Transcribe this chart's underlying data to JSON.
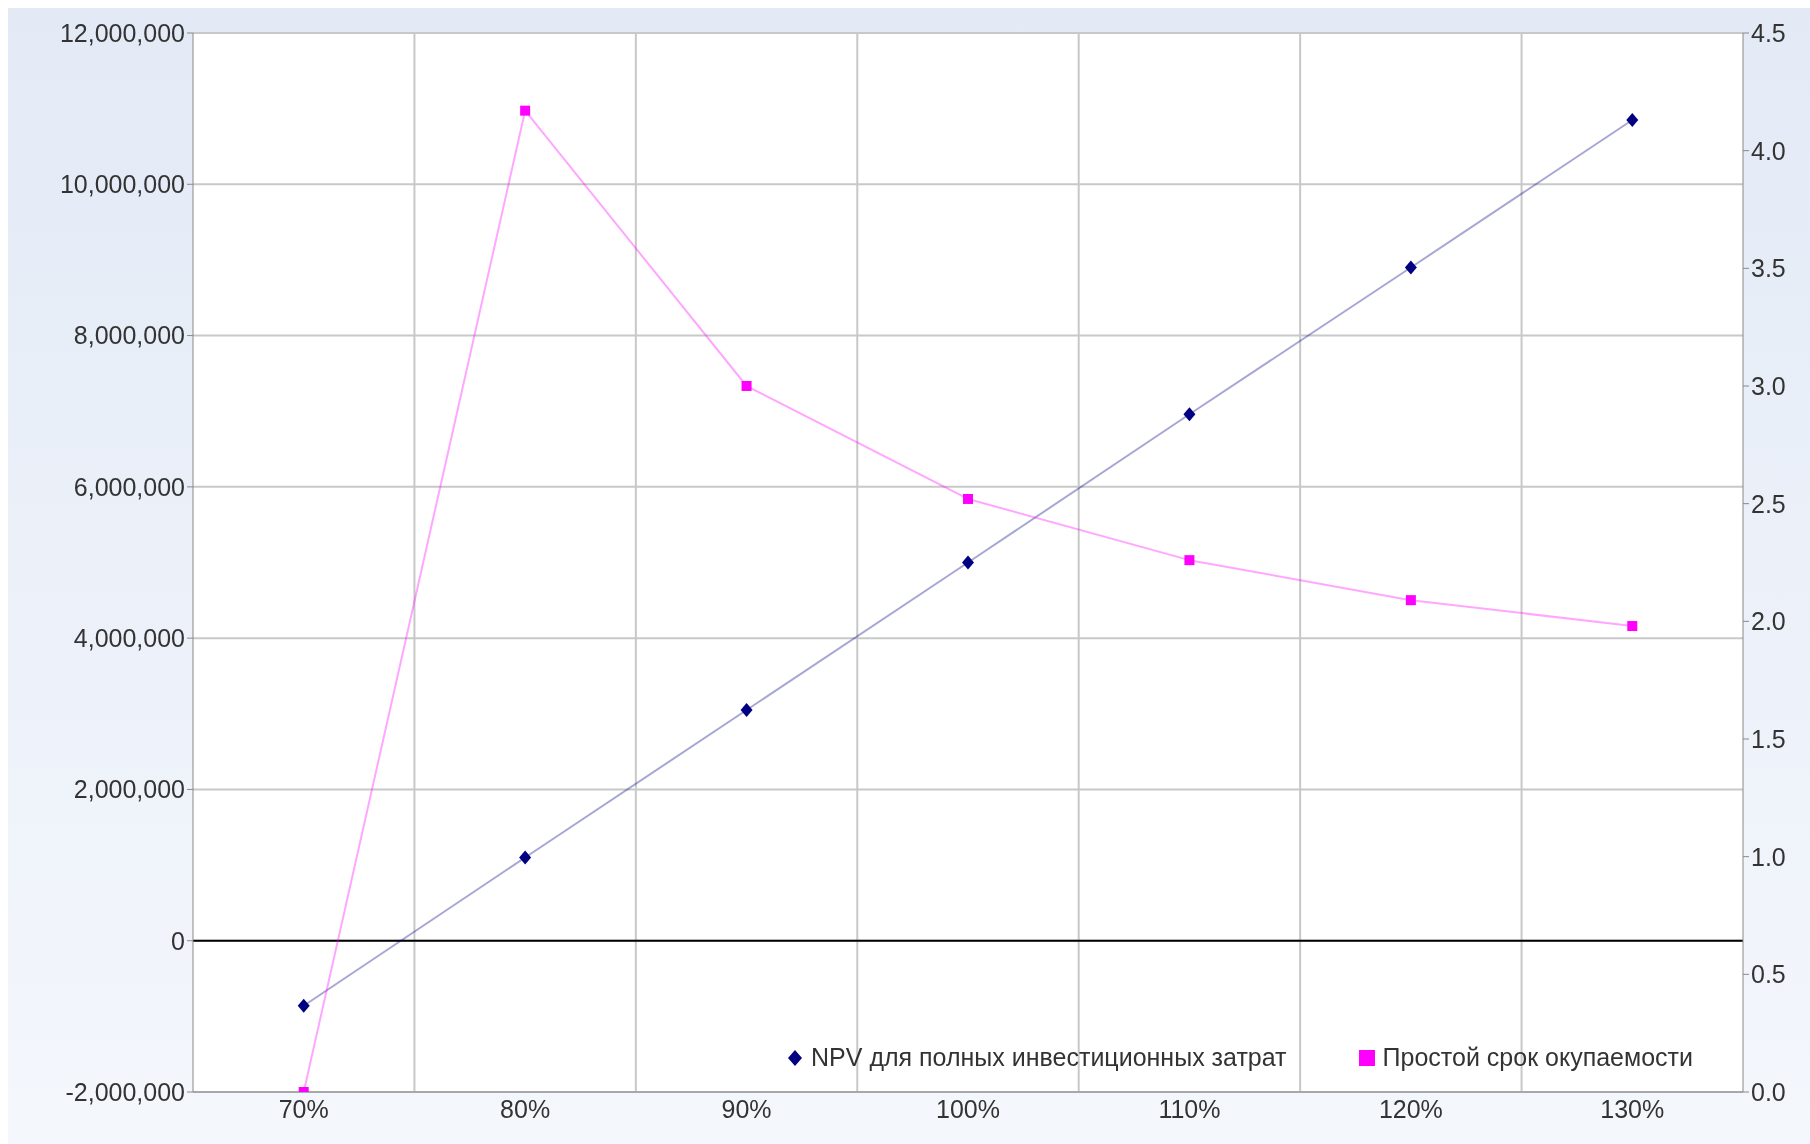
{
  "chart_data": {
    "type": "line",
    "categories": [
      "70%",
      "80%",
      "90%",
      "100%",
      "110%",
      "120%",
      "130%"
    ],
    "series": [
      {
        "name": "NPV для полных инвестиционных затрат",
        "color": "#000080",
        "marker": "diamond",
        "values": [
          -860000,
          1100000,
          3050000,
          5000000,
          6960000,
          8900000,
          10850000
        ]
      },
      {
        "name": "Простой срок окупаемости",
        "color": "#ff00ff",
        "marker": "square",
        "axis": "y2",
        "values": [
          0,
          4.17,
          3.0,
          2.52,
          2.26,
          2.09,
          1.98
        ]
      }
    ],
    "ylim": [
      -2000000,
      12000000
    ],
    "yticks": [
      {
        "value": -2000000,
        "label": "-2,000,000"
      },
      {
        "value": 0,
        "label": "0"
      },
      {
        "value": 2000000,
        "label": "2,000,000"
      },
      {
        "value": 4000000,
        "label": "4,000,000"
      },
      {
        "value": 6000000,
        "label": "6,000,000"
      },
      {
        "value": 8000000,
        "label": "8,000,000"
      },
      {
        "value": 10000000,
        "label": "10,000,000"
      },
      {
        "value": 12000000,
        "label": "12,000,000"
      }
    ],
    "y2lim": [
      0,
      4.5
    ],
    "y2ticks": [
      {
        "value": 0,
        "label": "0.0"
      },
      {
        "value": 0.5,
        "label": "0.5"
      },
      {
        "value": 1,
        "label": "1.0"
      },
      {
        "value": 1.5,
        "label": "1.5"
      },
      {
        "value": 2,
        "label": "2.0"
      },
      {
        "value": 2.5,
        "label": "2.5"
      },
      {
        "value": 3,
        "label": "3.0"
      },
      {
        "value": 3.5,
        "label": "3.5"
      },
      {
        "value": 4,
        "label": "4.0"
      },
      {
        "value": 4.5,
        "label": "4.5"
      }
    ],
    "ref_lines": [
      {
        "axis": "y",
        "value": 0,
        "color": "#000000"
      }
    ],
    "grid": true,
    "legend": "bottom right",
    "line_style": "solid"
  }
}
